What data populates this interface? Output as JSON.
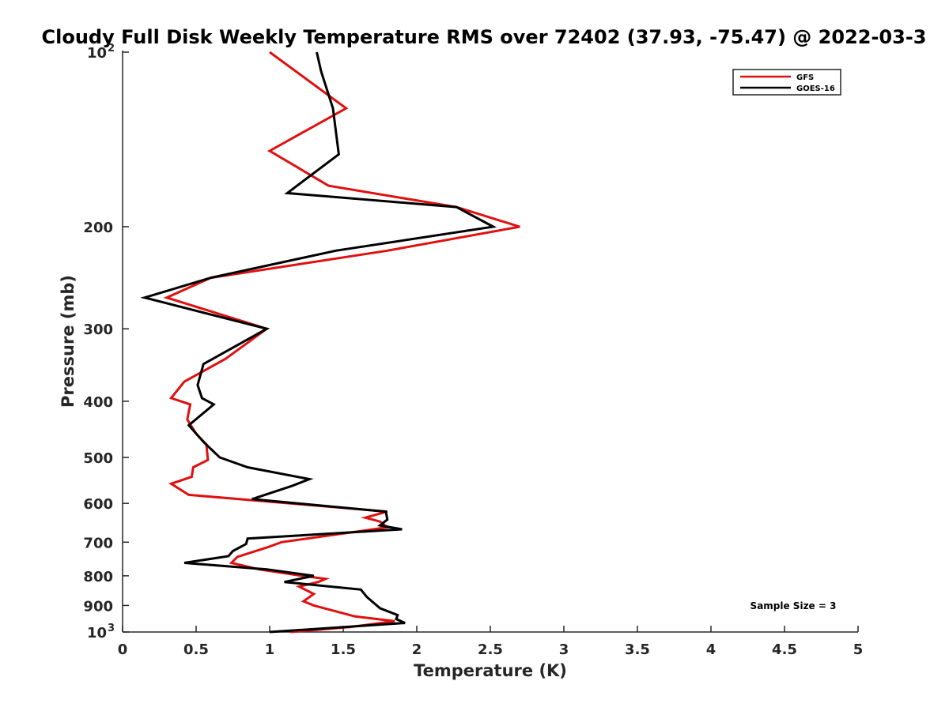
{
  "chart_data": {
    "type": "line",
    "title": "Cloudy Full Disk Weekly Temperature RMS over 72402 (37.93, -75.47) @ 2022-03-3",
    "xlabel": "Temperature (K)",
    "ylabel": "Pressure (mb)",
    "xlim": [
      0,
      5
    ],
    "ylim": [
      100,
      1000
    ],
    "y_scale": "log",
    "y_reversed": true,
    "x_ticks": [
      "0",
      "0.5",
      "1",
      "1.5",
      "2",
      "2.5",
      "3",
      "3.5",
      "4",
      "4.5",
      "5"
    ],
    "y_ticks": [
      {
        "value": 100,
        "base": "10",
        "exp": "2"
      },
      {
        "value": 200,
        "label": "200"
      },
      {
        "value": 300,
        "label": "300"
      },
      {
        "value": 400,
        "label": "400"
      },
      {
        "value": 500,
        "label": "500"
      },
      {
        "value": 600,
        "label": "600"
      },
      {
        "value": 700,
        "label": "700"
      },
      {
        "value": 800,
        "label": "800"
      },
      {
        "value": 900,
        "label": "900"
      },
      {
        "value": 1000,
        "base": "10",
        "exp": "3"
      }
    ],
    "grid": false,
    "legend_position": "top-right",
    "annotation": "Sample Size = 3",
    "series": [
      {
        "name": "GFS",
        "color": "#e01010",
        "points": [
          [
            1.0,
            100
          ],
          [
            1.52,
            125
          ],
          [
            1.0,
            148
          ],
          [
            1.4,
            170
          ],
          [
            2.27,
            185
          ],
          [
            2.7,
            200
          ],
          [
            1.8,
            220
          ],
          [
            0.6,
            245
          ],
          [
            0.3,
            265
          ],
          [
            0.98,
            300
          ],
          [
            0.7,
            338
          ],
          [
            0.42,
            370
          ],
          [
            0.33,
            395
          ],
          [
            0.46,
            405
          ],
          [
            0.44,
            430
          ],
          [
            0.5,
            455
          ],
          [
            0.57,
            475
          ],
          [
            0.58,
            505
          ],
          [
            0.48,
            520
          ],
          [
            0.47,
            540
          ],
          [
            0.33,
            555
          ],
          [
            0.45,
            580
          ],
          [
            1.8,
            620
          ],
          [
            1.65,
            635
          ],
          [
            1.75,
            645
          ],
          [
            1.8,
            660
          ],
          [
            1.08,
            700
          ],
          [
            0.98,
            715
          ],
          [
            0.78,
            742
          ],
          [
            0.74,
            760
          ],
          [
            0.93,
            780
          ],
          [
            1.22,
            800
          ],
          [
            1.38,
            810
          ],
          [
            1.33,
            820
          ],
          [
            1.2,
            835
          ],
          [
            1.3,
            860
          ],
          [
            1.23,
            885
          ],
          [
            1.3,
            900
          ],
          [
            1.58,
            940
          ],
          [
            1.85,
            958
          ],
          [
            1.55,
            980
          ],
          [
            1.14,
            1000
          ]
        ]
      },
      {
        "name": "GOES-16",
        "color": "#000000",
        "points": [
          [
            1.32,
            100
          ],
          [
            1.35,
            108
          ],
          [
            1.43,
            125
          ],
          [
            1.47,
            150
          ],
          [
            1.12,
            175
          ],
          [
            2.27,
            185
          ],
          [
            2.52,
            200
          ],
          [
            1.45,
            220
          ],
          [
            0.6,
            245
          ],
          [
            0.15,
            265
          ],
          [
            0.98,
            300
          ],
          [
            0.55,
            345
          ],
          [
            0.51,
            375
          ],
          [
            0.54,
            395
          ],
          [
            0.62,
            405
          ],
          [
            0.45,
            440
          ],
          [
            0.55,
            470
          ],
          [
            0.66,
            500
          ],
          [
            0.85,
            520
          ],
          [
            1.27,
            545
          ],
          [
            1.15,
            560
          ],
          [
            0.88,
            590
          ],
          [
            1.79,
            620
          ],
          [
            1.8,
            640
          ],
          [
            1.75,
            655
          ],
          [
            1.9,
            665
          ],
          [
            0.85,
            690
          ],
          [
            0.84,
            705
          ],
          [
            0.75,
            725
          ],
          [
            0.72,
            740
          ],
          [
            0.42,
            760
          ],
          [
            0.98,
            780
          ],
          [
            1.3,
            800
          ],
          [
            1.1,
            820
          ],
          [
            1.62,
            845
          ],
          [
            1.66,
            870
          ],
          [
            1.75,
            910
          ],
          [
            1.87,
            935
          ],
          [
            1.86,
            950
          ],
          [
            1.92,
            965
          ],
          [
            1.0,
            1000
          ]
        ]
      }
    ]
  }
}
